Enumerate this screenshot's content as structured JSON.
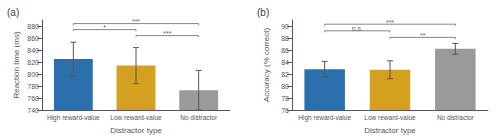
{
  "chart_data": [
    {
      "type": "bar",
      "title": "(a)",
      "categories": [
        "High reward-value",
        "Low reward-value",
        "No distractor"
      ],
      "values": [
        825,
        814,
        773
      ],
      "errors": [
        28,
        30,
        33
      ],
      "colors": [
        "#2c6fad",
        "#d4a020",
        "#9a9a9a"
      ],
      "ylim": [
        740,
        890
      ],
      "yticks": [
        740,
        760,
        780,
        800,
        820,
        840,
        860,
        880
      ],
      "ylabel": "Reaction time (ms)",
      "xlabel": "Distractor type",
      "grid": false,
      "annotations": [
        {
          "x1": 0,
          "x2": 1,
          "y": 874,
          "text": "*"
        },
        {
          "x1": 0,
          "x2": 2,
          "y": 884,
          "text": "***"
        },
        {
          "x1": 1,
          "x2": 2,
          "y": 864,
          "text": "***"
        }
      ]
    },
    {
      "type": "bar",
      "title": "(b)",
      "categories": [
        "High reward-value",
        "Low reward-value",
        "No distractor"
      ],
      "values": [
        82.8,
        82.7,
        86.2
      ],
      "errors": [
        1.3,
        1.5,
        0.9
      ],
      "colors": [
        "#2c6fad",
        "#d4a020",
        "#9a9a9a"
      ],
      "ylim": [
        76,
        91
      ],
      "yticks": [
        76,
        78,
        80,
        82,
        84,
        86,
        88,
        90
      ],
      "ylabel": "Accuracy (% correct)",
      "xlabel": "Distractor type",
      "grid": false,
      "annotations": [
        {
          "x1": 0,
          "x2": 1,
          "y": 89.2,
          "text": "n.s."
        },
        {
          "x1": 0,
          "x2": 2,
          "y": 90.3,
          "text": "***"
        },
        {
          "x1": 1,
          "x2": 2,
          "y": 88.1,
          "text": "**"
        }
      ]
    }
  ]
}
